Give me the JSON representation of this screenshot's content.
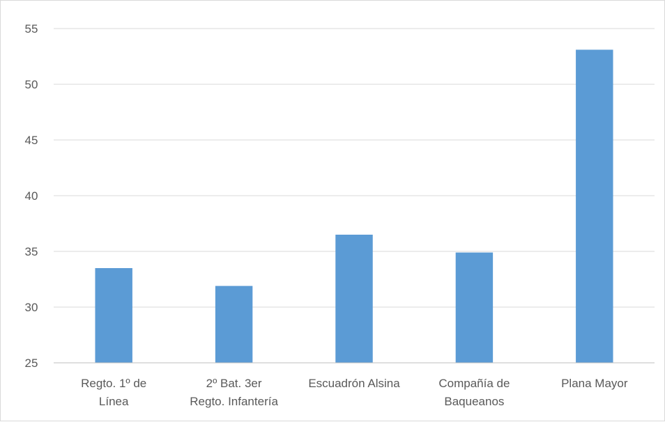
{
  "chart_data": {
    "type": "bar",
    "categories": [
      [
        "Regto. 1º de",
        "Línea"
      ],
      [
        "2º Bat. 3er",
        "Regto. Infantería"
      ],
      [
        "Escuadrón Alsina"
      ],
      [
        "Compañía de",
        "Baqueanos"
      ],
      [
        "Plana Mayor"
      ]
    ],
    "values": [
      33.5,
      31.9,
      36.5,
      34.9,
      53.1
    ],
    "title": "",
    "xlabel": "",
    "ylabel": "",
    "ylim": [
      25,
      55
    ],
    "yticks": [
      25,
      30,
      35,
      40,
      45,
      50,
      55
    ],
    "grid": true,
    "legend": "none",
    "colors": {
      "bar": "#5b9bd5",
      "grid": "#d9d9d9",
      "axis": "#bfbfbf",
      "text": "#595959"
    }
  }
}
